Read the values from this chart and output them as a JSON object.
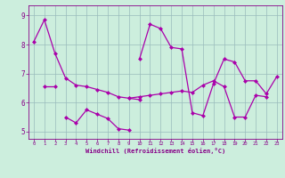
{
  "xlabel": "Windchill (Refroidissement éolien,°C)",
  "bg_color": "#cceedd",
  "line_color": "#aa00aa",
  "grid_color": "#99bbbb",
  "xlim": [
    -0.5,
    23.5
  ],
  "ylim": [
    4.75,
    9.35
  ],
  "yticks": [
    5,
    6,
    7,
    8,
    9
  ],
  "xticks": [
    0,
    1,
    2,
    3,
    4,
    5,
    6,
    7,
    8,
    9,
    10,
    11,
    12,
    13,
    14,
    15,
    16,
    17,
    18,
    19,
    20,
    21,
    22,
    23
  ],
  "series": {
    "s0": {
      "x": [
        0,
        1,
        2,
        3,
        4,
        5,
        6,
        7,
        8,
        9,
        10
      ],
      "y": [
        8.1,
        8.85,
        7.7,
        6.85,
        6.6,
        6.55,
        6.45,
        6.35,
        6.2,
        6.15,
        6.1
      ]
    },
    "s1": {
      "x": [
        1,
        2
      ],
      "y": [
        6.55,
        6.55
      ]
    },
    "s2": {
      "x": [
        3,
        4,
        5,
        6,
        7,
        8,
        9
      ],
      "y": [
        5.5,
        5.3,
        5.75,
        5.6,
        5.45,
        5.1,
        5.05
      ]
    },
    "s3": {
      "x": [
        9,
        10,
        11,
        12,
        13,
        14,
        15,
        16,
        17,
        18,
        19,
        20,
        21,
        22,
        23
      ],
      "y": [
        6.15,
        6.2,
        6.25,
        6.3,
        6.35,
        6.4,
        6.35,
        6.6,
        6.75,
        6.55,
        5.5,
        5.5,
        6.25,
        6.2,
        null
      ]
    },
    "s4": {
      "x": [
        10,
        11,
        12,
        13,
        14,
        15,
        16,
        17,
        18,
        19,
        20,
        21,
        22,
        23
      ],
      "y": [
        7.5,
        8.7,
        8.55,
        7.9,
        7.85,
        5.65,
        5.55,
        6.65,
        7.5,
        7.4,
        6.75,
        6.75,
        6.3,
        6.9
      ]
    }
  }
}
